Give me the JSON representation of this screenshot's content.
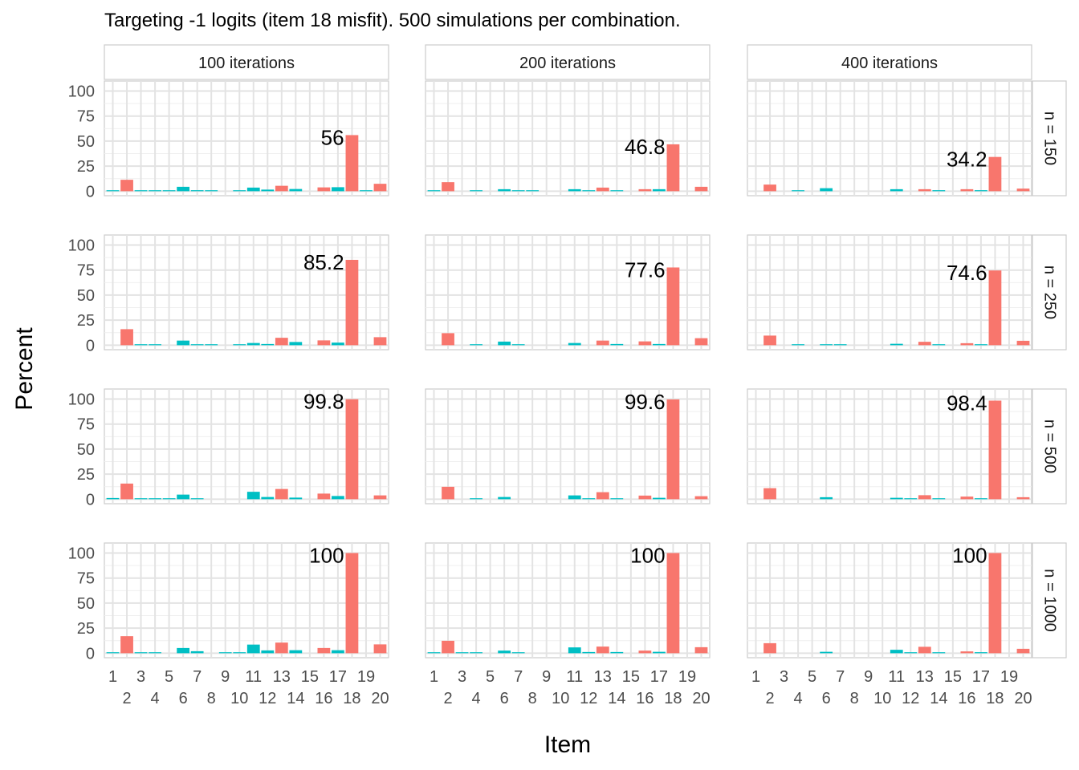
{
  "title": "Targeting -1 logits (item 18 misfit). 500 simulations per combination.",
  "xlabel": "Item",
  "ylabel": "Percent",
  "colors": {
    "target": "#F8766D",
    "other": "#00BFC4"
  },
  "chart_data": {
    "type": "bar",
    "facet_columns": [
      "100 iterations",
      "200 iterations",
      "400 iterations"
    ],
    "facet_rows": [
      "n = 150",
      "n = 250",
      "n = 500",
      "n = 1000"
    ],
    "x": [
      1,
      2,
      3,
      4,
      5,
      6,
      7,
      8,
      9,
      10,
      11,
      12,
      13,
      14,
      15,
      16,
      17,
      18,
      19,
      20
    ],
    "x_tick_labels_top": [
      "1",
      "3",
      "5",
      "7",
      "9",
      "11",
      "13",
      "15",
      "17",
      "19"
    ],
    "x_tick_labels_bottom": [
      "2",
      "4",
      "6",
      "8",
      "10",
      "12",
      "14",
      "16",
      "18",
      "20"
    ],
    "y_ticks": [
      0,
      25,
      50,
      75,
      100
    ],
    "ylim": [
      0,
      100
    ],
    "target_item": 18,
    "fill_legend": "red = items 2, 13, 16, 18, 20; teal = other items",
    "panels": [
      {
        "row": 0,
        "col": 0,
        "label": "56",
        "values": [
          0.6,
          11.4,
          0.6,
          0.6,
          0.6,
          4.4,
          1,
          0.6,
          0,
          0.6,
          3.6,
          1.6,
          5.4,
          2.2,
          0,
          3.8,
          4,
          56,
          0.6,
          7.4
        ]
      },
      {
        "row": 0,
        "col": 1,
        "label": "46.8",
        "values": [
          0.4,
          9,
          0,
          0.6,
          0,
          2,
          0.6,
          0.4,
          0,
          0,
          2,
          0.8,
          3.6,
          0.6,
          0,
          2,
          2,
          46.8,
          0,
          4.4
        ]
      },
      {
        "row": 0,
        "col": 2,
        "label": "34.2",
        "values": [
          0,
          6.6,
          0,
          0.6,
          0,
          3,
          0,
          0,
          0,
          0,
          2,
          0,
          2,
          1,
          0,
          2,
          1,
          34.2,
          0,
          2.6
        ]
      },
      {
        "row": 1,
        "col": 0,
        "label": "85.2",
        "values": [
          0,
          16,
          0.6,
          0.6,
          0,
          4.6,
          0.6,
          0.4,
          0,
          0.6,
          2.2,
          1.2,
          7.4,
          3.2,
          0,
          4.8,
          2.6,
          85.2,
          0,
          8
        ]
      },
      {
        "row": 1,
        "col": 1,
        "label": "77.6",
        "values": [
          0,
          12,
          0,
          0.4,
          0,
          3.6,
          0.8,
          0,
          0,
          0,
          2.2,
          0,
          4.6,
          1.2,
          0,
          3.8,
          1.2,
          77.6,
          0,
          7
        ]
      },
      {
        "row": 1,
        "col": 2,
        "label": "74.6",
        "values": [
          0,
          9.6,
          0,
          0.4,
          0,
          0.8,
          0.4,
          0,
          0,
          0,
          1.4,
          0,
          3.4,
          0.6,
          0,
          2,
          0.8,
          74.6,
          0,
          4.4
        ]
      },
      {
        "row": 2,
        "col": 0,
        "label": "99.8",
        "values": [
          1.2,
          15.6,
          0.4,
          0.4,
          0.4,
          4.6,
          0.6,
          0,
          0,
          0,
          7.4,
          2.2,
          10.2,
          1.6,
          0,
          5.6,
          3.2,
          99.8,
          0,
          3.8
        ]
      },
      {
        "row": 2,
        "col": 1,
        "label": "99.6",
        "values": [
          0,
          12.4,
          0,
          0.4,
          0,
          2.2,
          0,
          0,
          0,
          0,
          3.8,
          0.4,
          7,
          0.8,
          0,
          3.6,
          1.4,
          99.6,
          0,
          3
        ]
      },
      {
        "row": 2,
        "col": 2,
        "label": "98.4",
        "values": [
          0,
          11,
          0,
          0,
          0,
          2,
          0,
          0,
          0,
          0,
          1.4,
          0.6,
          4,
          0.6,
          0,
          2.6,
          0.6,
          98.4,
          0,
          2
        ]
      },
      {
        "row": 3,
        "col": 0,
        "label": "100",
        "values": [
          0.6,
          17,
          0.6,
          0.6,
          0,
          5.2,
          2,
          0,
          0.6,
          0.6,
          8.6,
          2.8,
          10.6,
          3,
          0,
          5.2,
          3,
          100,
          0,
          8.8
        ]
      },
      {
        "row": 3,
        "col": 1,
        "label": "100",
        "values": [
          0.4,
          12.4,
          0.6,
          0.6,
          0,
          2.6,
          0.6,
          0,
          0,
          0,
          5.8,
          1.2,
          6.6,
          1.2,
          0,
          2.6,
          1.4,
          100,
          0,
          6
        ]
      },
      {
        "row": 3,
        "col": 2,
        "label": "100",
        "values": [
          0,
          10,
          0,
          0,
          0,
          1.4,
          0,
          0,
          0,
          0,
          3.4,
          0.4,
          6.4,
          0.4,
          0,
          1.8,
          1,
          100,
          0,
          4.4
        ]
      }
    ]
  }
}
